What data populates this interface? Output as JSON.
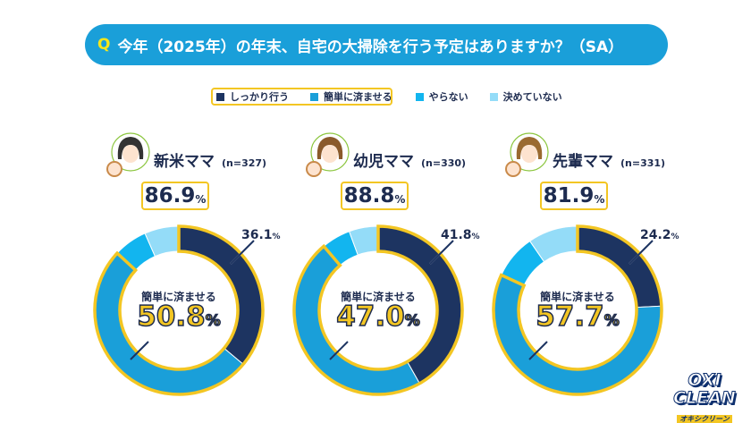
{
  "header": {
    "q": "Q",
    "title": "今年（2025年）の年末、自宅の大掃除を行う予定はありますか？（SA）"
  },
  "legend": [
    {
      "label": "しっかり行う",
      "color": "#1d3461"
    },
    {
      "label": "簡単に済ませる",
      "color": "#1a9fd9"
    },
    {
      "label": "やらない",
      "color": "#12b5ef"
    },
    {
      "label": "決めていない",
      "color": "#94dcf8"
    }
  ],
  "panels": [
    {
      "name": "新米ママ",
      "n": "(n=327)",
      "total": "86.9",
      "center_label": "簡単に済ませる",
      "center_value": "50.8",
      "dark_value": "36.1",
      "pct": "%"
    },
    {
      "name": "幼児ママ",
      "n": "(n=330)",
      "total": "88.8",
      "center_label": "簡単に済ませる",
      "center_value": "47.0",
      "dark_value": "41.8",
      "pct": "%"
    },
    {
      "name": "先輩ママ",
      "n": "(n=331)",
      "total": "81.9",
      "center_label": "簡単に済ませる",
      "center_value": "57.7",
      "dark_value": "24.2",
      "pct": "%"
    }
  ],
  "chart_data": [
    {
      "type": "pie",
      "title": "新米ママ (n=327)",
      "categories": [
        "しっかり行う",
        "簡単に済ませる",
        "やらない",
        "決めていない"
      ],
      "values": [
        36.1,
        50.8,
        6.5,
        6.6
      ]
    },
    {
      "type": "pie",
      "title": "幼児ママ (n=330)",
      "categories": [
        "しっかり行う",
        "簡単に済ませる",
        "やらない",
        "決めていない"
      ],
      "values": [
        41.8,
        47.0,
        5.6,
        5.6
      ]
    },
    {
      "type": "pie",
      "title": "先輩ママ (n=331)",
      "categories": [
        "しっかり行う",
        "簡単に済ませる",
        "やらない",
        "決めていない"
      ],
      "values": [
        24.2,
        57.7,
        8.5,
        9.6
      ]
    }
  ],
  "logo": {
    "line1": "OXI",
    "line2": "CLEAN",
    "line3": "オキシクリーン"
  }
}
